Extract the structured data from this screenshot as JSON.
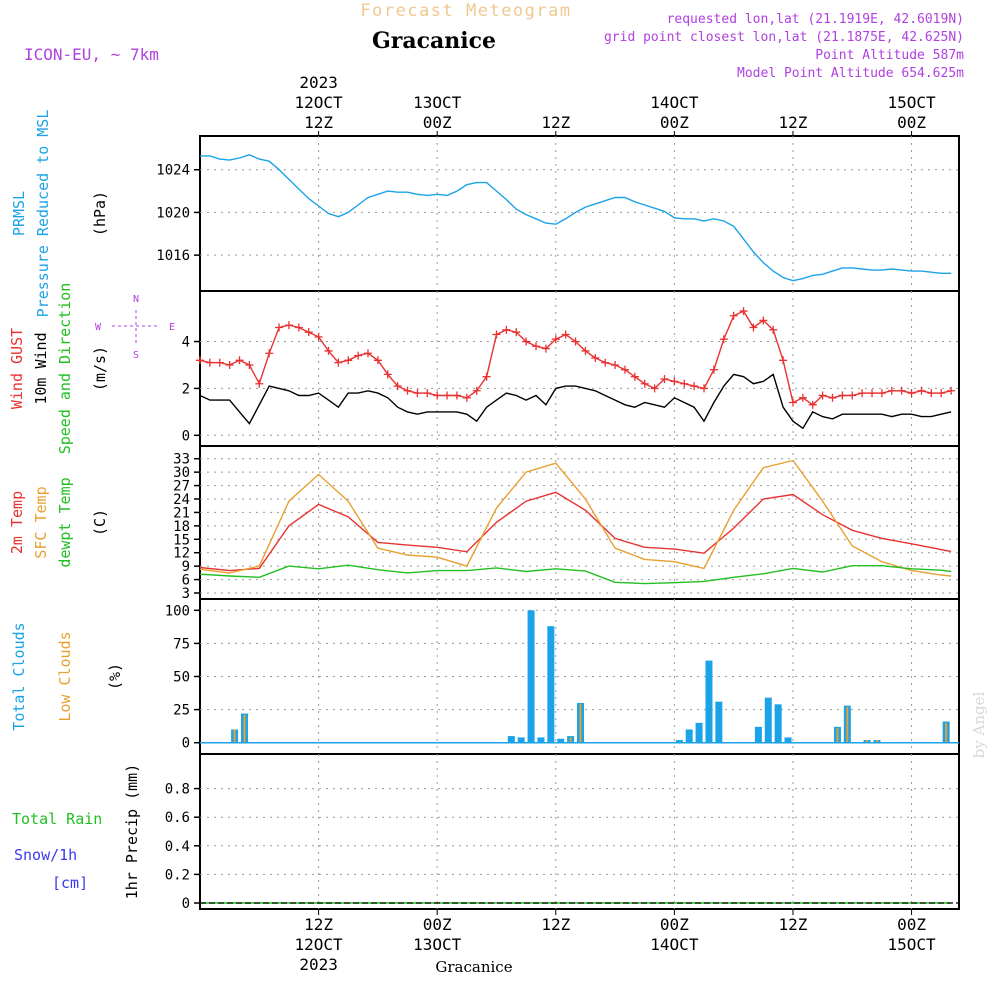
{
  "header": {
    "banner": "Forecast Meteogram",
    "location": "Gracanice",
    "model": "ICON-EU, ~ 7km",
    "requested": "requested lon,lat (21.1919E, 42.6019N)",
    "grid_point": "grid point closest lon,lat (21.1875E, 42.625N)",
    "point_altitude": "Point Altitude 587m",
    "model_altitude": "Model Point Altitude 654.625m",
    "watermark": "by Angel",
    "footer_location": "Gracanice"
  },
  "time_axis": {
    "top_labels": [
      {
        "t": 12,
        "lines": [
          "2023",
          "12OCT",
          "12Z"
        ]
      },
      {
        "t": 24,
        "lines": [
          "13OCT",
          "00Z"
        ]
      },
      {
        "t": 36,
        "lines": [
          "12Z"
        ]
      },
      {
        "t": 48,
        "lines": [
          "14OCT",
          "00Z"
        ]
      },
      {
        "t": 60,
        "lines": [
          "12Z"
        ]
      },
      {
        "t": 72,
        "lines": [
          "15OCT",
          "00Z"
        ]
      }
    ],
    "bottom_labels": [
      {
        "t": 12,
        "lines": [
          "12Z",
          "12OCT",
          "2023"
        ]
      },
      {
        "t": 24,
        "lines": [
          "00Z",
          "13OCT"
        ]
      },
      {
        "t": 36,
        "lines": [
          "12Z"
        ]
      },
      {
        "t": 48,
        "lines": [
          "00Z",
          "14OCT"
        ]
      },
      {
        "t": 60,
        "lines": [
          "12Z"
        ]
      },
      {
        "t": 72,
        "lines": [
          "00Z",
          "15OCT"
        ]
      }
    ]
  },
  "colors": {
    "pressure": "#1aa3e8",
    "gust": "#e83232",
    "wind": "#000000",
    "temp": "#e83232",
    "sfc_temp": "#e8a030",
    "dewpt": "#22c022",
    "total_clouds": "#1aa3e8",
    "low_clouds": "#e8a030",
    "rain": "#22c022",
    "snow": "#3a3af0",
    "banner": "#f0c890",
    "meta": "#b040e0",
    "watermark": "#d8d8d8"
  },
  "chart_data": [
    {
      "type": "line",
      "panel": "pressure",
      "labels": [
        "PRMSL",
        "Pressure Reduced to MSL"
      ],
      "ylabel": "(hPa)",
      "yticks": [
        1016,
        1020,
        1024
      ],
      "ylim": [
        1013.2,
        1026.6
      ],
      "grid": true,
      "series": [
        {
          "name": "PRMSL",
          "x": [
            0,
            1,
            2,
            3,
            4,
            5,
            6,
            7,
            8,
            9,
            10,
            11,
            12,
            13,
            14,
            15,
            16,
            17,
            18,
            19,
            20,
            21,
            22,
            23,
            24,
            25,
            26,
            27,
            28,
            29,
            30,
            31,
            32,
            33,
            34,
            35,
            36,
            37,
            38,
            39,
            40,
            41,
            42,
            43,
            44,
            45,
            46,
            47,
            48,
            49,
            50,
            51,
            52,
            53,
            54,
            55,
            56,
            57,
            58,
            59,
            60,
            61,
            62,
            63,
            64,
            65,
            66,
            67,
            68,
            69,
            70,
            71,
            72,
            73,
            74,
            75,
            76
          ],
          "values": [
            1025.3,
            1025.3,
            1025.0,
            1024.9,
            1025.1,
            1025.4,
            1025.0,
            1024.8,
            1024.0,
            1023.1,
            1022.2,
            1021.3,
            1020.6,
            1019.9,
            1019.6,
            1020.0,
            1020.7,
            1021.4,
            1021.7,
            1022.0,
            1021.9,
            1021.9,
            1021.7,
            1021.6,
            1021.7,
            1021.6,
            1022.0,
            1022.6,
            1022.8,
            1022.8,
            1022.0,
            1021.2,
            1020.3,
            1019.8,
            1019.4,
            1019.0,
            1018.9,
            1019.4,
            1020.0,
            1020.5,
            1020.8,
            1021.1,
            1021.4,
            1021.4,
            1021.0,
            1020.7,
            1020.4,
            1020.1,
            1019.5,
            1019.4,
            1019.4,
            1019.2,
            1019.4,
            1019.2,
            1018.7,
            1017.5,
            1016.3,
            1015.3,
            1014.5,
            1013.9,
            1013.6,
            1013.8,
            1014.1,
            1014.2,
            1014.5,
            1014.8,
            1014.8,
            1014.7,
            1014.6,
            1014.6,
            1014.7,
            1014.6,
            1014.5,
            1014.5,
            1014.4,
            1014.3,
            1014.3
          ]
        }
      ]
    },
    {
      "type": "line",
      "panel": "wind",
      "labels": [
        "Wind GUST",
        "10m Wind",
        "Speed and Direction"
      ],
      "ylabel": "(m/s)",
      "yticks": [
        0,
        2,
        4
      ],
      "ylim": [
        -0.2,
        5.9
      ],
      "grid": true,
      "compass": [
        "N",
        "W",
        "E",
        "S"
      ],
      "series": [
        {
          "name": "Wind GUST",
          "x": [
            0,
            1,
            2,
            3,
            4,
            5,
            6,
            7,
            8,
            9,
            10,
            11,
            12,
            13,
            14,
            15,
            16,
            17,
            18,
            19,
            20,
            21,
            22,
            23,
            24,
            25,
            26,
            27,
            28,
            29,
            30,
            31,
            32,
            33,
            34,
            35,
            36,
            37,
            38,
            39,
            40,
            41,
            42,
            43,
            44,
            45,
            46,
            47,
            48,
            49,
            50,
            51,
            52,
            53,
            54,
            55,
            56,
            57,
            58,
            59,
            60,
            61,
            62,
            63,
            64,
            65,
            66,
            67,
            68,
            69,
            70,
            71,
            72,
            73,
            74,
            75,
            76
          ],
          "values": [
            3.2,
            3.1,
            3.1,
            3.0,
            3.2,
            3.0,
            2.2,
            3.5,
            4.6,
            4.7,
            4.6,
            4.4,
            4.2,
            3.6,
            3.1,
            3.2,
            3.4,
            3.5,
            3.2,
            2.6,
            2.1,
            1.9,
            1.8,
            1.8,
            1.7,
            1.7,
            1.7,
            1.6,
            1.9,
            2.5,
            4.3,
            4.5,
            4.4,
            4.0,
            3.8,
            3.7,
            4.1,
            4.3,
            4.0,
            3.6,
            3.3,
            3.1,
            3.0,
            2.8,
            2.5,
            2.2,
            2.0,
            2.4,
            2.3,
            2.2,
            2.1,
            2.0,
            2.8,
            4.1,
            5.1,
            5.3,
            4.6,
            4.9,
            4.5,
            3.2,
            1.4,
            1.6,
            1.3,
            1.7,
            1.6,
            1.7,
            1.7,
            1.8,
            1.8,
            1.8,
            1.9,
            1.9,
            1.8,
            1.9,
            1.8,
            1.8,
            1.9
          ]
        },
        {
          "name": "10m Wind",
          "x": [
            0,
            1,
            2,
            3,
            4,
            5,
            6,
            7,
            8,
            9,
            10,
            11,
            12,
            13,
            14,
            15,
            16,
            17,
            18,
            19,
            20,
            21,
            22,
            23,
            24,
            25,
            26,
            27,
            28,
            29,
            30,
            31,
            32,
            33,
            34,
            35,
            36,
            37,
            38,
            39,
            40,
            41,
            42,
            43,
            44,
            45,
            46,
            47,
            48,
            49,
            50,
            51,
            52,
            53,
            54,
            55,
            56,
            57,
            58,
            59,
            60,
            61,
            62,
            63,
            64,
            65,
            66,
            67,
            68,
            69,
            70,
            71,
            72,
            73,
            74,
            75,
            76
          ],
          "values": [
            1.7,
            1.5,
            1.5,
            1.5,
            1.0,
            0.5,
            1.3,
            2.1,
            2.0,
            1.9,
            1.7,
            1.7,
            1.8,
            1.5,
            1.2,
            1.8,
            1.8,
            1.9,
            1.8,
            1.6,
            1.2,
            1.0,
            0.9,
            1.0,
            1.0,
            1.0,
            1.0,
            0.9,
            0.6,
            1.2,
            1.5,
            1.8,
            1.7,
            1.5,
            1.7,
            1.3,
            2.0,
            2.1,
            2.1,
            2.0,
            1.9,
            1.7,
            1.5,
            1.3,
            1.2,
            1.4,
            1.3,
            1.2,
            1.6,
            1.4,
            1.2,
            0.6,
            1.4,
            2.1,
            2.6,
            2.5,
            2.2,
            2.3,
            2.6,
            1.2,
            0.6,
            0.3,
            1.0,
            0.8,
            0.7,
            0.9,
            0.9,
            0.9,
            0.9,
            0.9,
            0.8,
            0.9,
            0.9,
            0.8,
            0.8,
            0.9,
            1.0
          ]
        }
      ]
    },
    {
      "type": "line",
      "panel": "temperature",
      "labels": [
        "2m Temp",
        "SFC Temp",
        "dewpt Temp"
      ],
      "ylabel": "(C)",
      "yticks": [
        3,
        6,
        9,
        12,
        15,
        18,
        21,
        24,
        27,
        30,
        33
      ],
      "ylim": [
        3,
        34.5
      ],
      "grid": true,
      "series": [
        {
          "name": "2m Temp",
          "x": [
            0,
            3,
            6,
            9,
            12,
            15,
            18,
            21,
            24,
            27,
            30,
            33,
            36,
            39,
            42,
            45,
            48,
            51,
            54,
            57,
            60,
            63,
            66,
            69,
            72,
            75,
            76
          ],
          "values": [
            8.7,
            8.0,
            8.5,
            18.0,
            22.8,
            20.0,
            14.3,
            13.7,
            13.2,
            12.2,
            18.8,
            23.5,
            25.5,
            21.5,
            15.2,
            13.2,
            12.8,
            11.9,
            17.5,
            24.0,
            25.0,
            20.5,
            17.0,
            15.2,
            14.0,
            12.7,
            12.3
          ]
        },
        {
          "name": "SFC Temp",
          "x": [
            0,
            3,
            6,
            9,
            12,
            15,
            18,
            21,
            24,
            27,
            30,
            33,
            36,
            39,
            42,
            45,
            48,
            51,
            54,
            57,
            60,
            63,
            66,
            69,
            72,
            75,
            76
          ],
          "values": [
            8.3,
            7.5,
            9.0,
            23.5,
            29.5,
            23.5,
            13.0,
            11.5,
            11.0,
            9.0,
            22.0,
            30.0,
            32.0,
            24.0,
            13.0,
            10.5,
            10.0,
            8.5,
            21.5,
            31.0,
            32.6,
            23.5,
            13.5,
            10.0,
            8.0,
            7.0,
            6.8
          ]
        },
        {
          "name": "dewpt Temp",
          "x": [
            0,
            3,
            6,
            9,
            12,
            15,
            18,
            21,
            24,
            27,
            30,
            33,
            36,
            39,
            42,
            45,
            48,
            51,
            54,
            57,
            60,
            63,
            66,
            69,
            72,
            75,
            76
          ],
          "values": [
            7.2,
            6.8,
            6.5,
            9.0,
            8.4,
            9.2,
            8.2,
            7.5,
            8.0,
            8.0,
            8.6,
            7.8,
            8.4,
            7.9,
            5.4,
            5.1,
            5.3,
            5.6,
            6.5,
            7.3,
            8.5,
            7.7,
            9.1,
            9.1,
            8.4,
            8.1,
            7.8
          ]
        }
      ]
    },
    {
      "type": "bar",
      "panel": "clouds",
      "labels": [
        "Total Clouds",
        "Low Clouds"
      ],
      "ylabel": "(%)",
      "yticks": [
        0,
        25,
        50,
        75,
        100
      ],
      "ylim": [
        -4,
        104
      ],
      "grid": true,
      "series": [
        {
          "name": "Total Clouds",
          "x": [
            3,
            4,
            31,
            32,
            33,
            34,
            35,
            36,
            37,
            38,
            48,
            49,
            50,
            51,
            52,
            56,
            57,
            58,
            59,
            64,
            65,
            67,
            68,
            75
          ],
          "values": [
            10,
            22,
            5,
            4,
            100,
            4,
            88,
            3,
            5,
            30,
            2,
            10,
            15,
            62,
            31,
            12,
            34,
            29,
            4,
            12,
            28,
            2,
            2,
            16
          ]
        },
        {
          "name": "Low Clouds",
          "x": [
            3,
            4,
            37,
            38,
            64,
            65,
            67,
            68,
            75
          ],
          "values": [
            10,
            21,
            4,
            29,
            11,
            27,
            2,
            2,
            15
          ]
        }
      ]
    },
    {
      "type": "line",
      "panel": "precip",
      "labels": [
        "Total  Rain",
        "Snow/1h",
        "[cm]"
      ],
      "ylabel": "1hr Precip (mm)",
      "yticks": [
        0,
        0.2,
        0.4,
        0.6,
        0.8
      ],
      "ylim": [
        0,
        1.0
      ],
      "grid": true,
      "series": [
        {
          "name": "Total  Rain",
          "x": [
            0,
            76
          ],
          "values": [
            0,
            0
          ]
        }
      ]
    }
  ]
}
